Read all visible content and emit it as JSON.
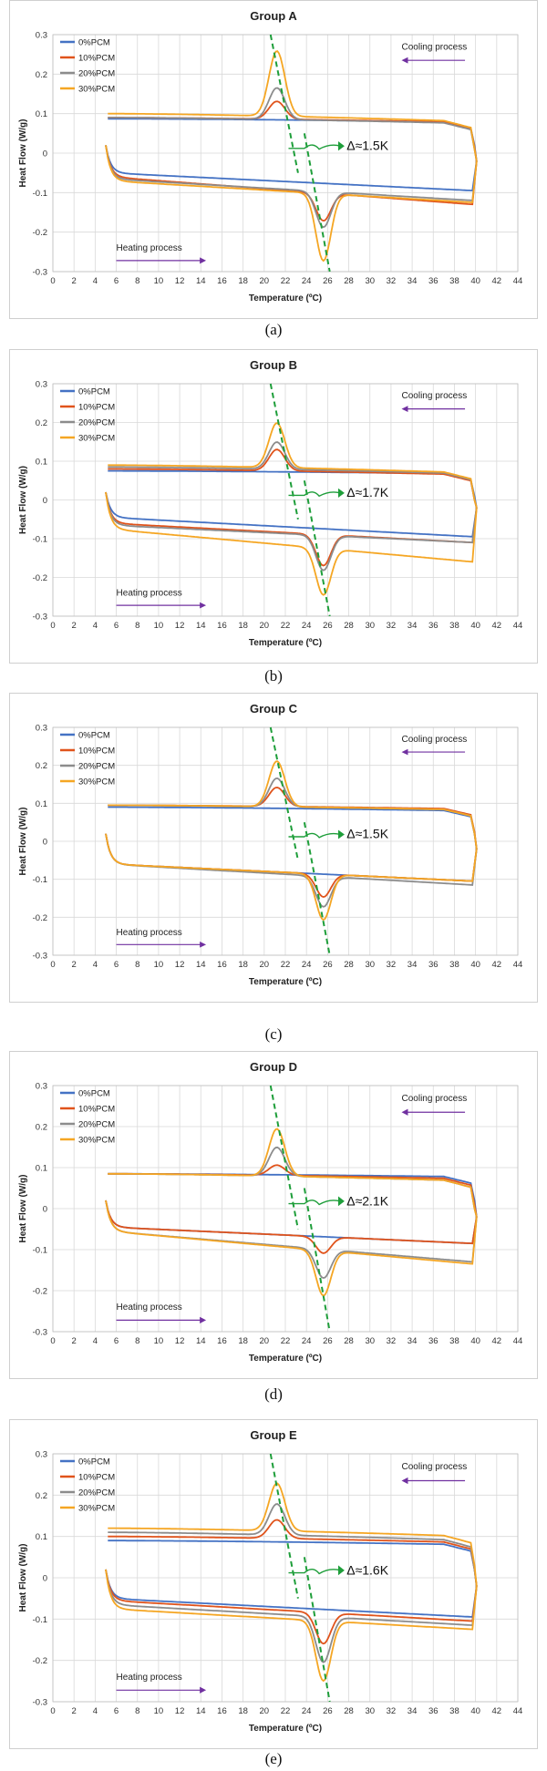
{
  "colors": {
    "pcm0": "#4472C4",
    "pcm10": "#E0531B",
    "pcm20": "#8C8C8C",
    "pcm30": "#F5A623",
    "dashed": "#1E9E3A",
    "arrow": "#7030A0",
    "grid": "#d9d9d9"
  },
  "legend_labels": [
    "0%PCM",
    "10%PCM",
    "20%PCM",
    "30%PCM"
  ],
  "xlabel": "Temperature (ºC)",
  "ylabel": "Heat Flow (W/g)",
  "cooling_label": "Cooling process",
  "heating_label": "Heating process",
  "chart_data": [
    {
      "type": "line",
      "title": "Group A",
      "caption": "(a)",
      "delta_label": "Δ≈1.5K",
      "xlim": [
        0,
        44
      ],
      "ylim": [
        -0.3,
        0.3
      ],
      "xticks": [
        0,
        2,
        4,
        6,
        8,
        10,
        12,
        14,
        16,
        18,
        20,
        22,
        24,
        26,
        28,
        30,
        32,
        34,
        36,
        38,
        40,
        42,
        44
      ],
      "yticks": [
        -0.3,
        -0.2,
        -0.1,
        0,
        0.1,
        0.2,
        0.3
      ],
      "series": [
        {
          "name": "0%PCM",
          "cooling": {
            "base": 0.087,
            "end": 0.07,
            "peak": 0.0
          },
          "heating": {
            "base": -0.05,
            "end": -0.095,
            "peak": 0.0
          }
        },
        {
          "name": "10%PCM",
          "cooling": {
            "base": 0.09,
            "end": 0.065,
            "peak": 0.045
          },
          "heating": {
            "base": -0.06,
            "end": -0.13,
            "peak": -0.07
          }
        },
        {
          "name": "20%PCM",
          "cooling": {
            "base": 0.09,
            "end": 0.06,
            "peak": 0.08
          },
          "heating": {
            "base": -0.065,
            "end": -0.12,
            "peak": -0.09
          }
        },
        {
          "name": "30%PCM",
          "cooling": {
            "base": 0.1,
            "end": 0.06,
            "peak": 0.165
          },
          "heating": {
            "base": -0.07,
            "end": -0.125,
            "peak": -0.17
          }
        }
      ]
    },
    {
      "type": "line",
      "title": "Group B",
      "caption": "(b)",
      "delta_label": "Δ≈1.7K",
      "xlim": [
        0,
        44
      ],
      "ylim": [
        -0.3,
        0.3
      ],
      "xticks": [
        0,
        2,
        4,
        6,
        8,
        10,
        12,
        14,
        16,
        18,
        20,
        22,
        24,
        26,
        28,
        30,
        32,
        34,
        36,
        38,
        40,
        42,
        44
      ],
      "yticks": [
        -0.3,
        -0.2,
        -0.1,
        0,
        0.1,
        0.2,
        0.3
      ],
      "series": [
        {
          "name": "0%PCM",
          "cooling": {
            "base": 0.075,
            "end": 0.06,
            "peak": 0.0
          },
          "heating": {
            "base": -0.045,
            "end": -0.095,
            "peak": 0.0
          }
        },
        {
          "name": "10%PCM",
          "cooling": {
            "base": 0.08,
            "end": 0.05,
            "peak": 0.055
          },
          "heating": {
            "base": -0.06,
            "end": -0.11,
            "peak": -0.08
          }
        },
        {
          "name": "20%PCM",
          "cooling": {
            "base": 0.085,
            "end": 0.05,
            "peak": 0.07
          },
          "heating": {
            "base": -0.065,
            "end": -0.11,
            "peak": -0.09
          }
        },
        {
          "name": "30%PCM",
          "cooling": {
            "base": 0.09,
            "end": 0.05,
            "peak": 0.115
          },
          "heating": {
            "base": -0.075,
            "end": -0.16,
            "peak": -0.12
          }
        }
      ]
    },
    {
      "type": "line",
      "title": "Group C",
      "caption": "(c)",
      "delta_label": "Δ≈1.5K",
      "xlim": [
        0,
        44
      ],
      "ylim": [
        -0.3,
        0.3
      ],
      "xticks": [
        0,
        2,
        4,
        6,
        8,
        10,
        12,
        14,
        16,
        18,
        20,
        22,
        24,
        26,
        28,
        30,
        32,
        34,
        36,
        38,
        40,
        42,
        44
      ],
      "yticks": [
        -0.3,
        -0.2,
        -0.1,
        0,
        0.1,
        0.2,
        0.3
      ],
      "series": [
        {
          "name": "0%PCM",
          "cooling": {
            "base": 0.09,
            "end": 0.07,
            "peak": 0.0
          },
          "heating": {
            "base": -0.06,
            "end": -0.105,
            "peak": 0.0
          }
        },
        {
          "name": "10%PCM",
          "cooling": {
            "base": 0.095,
            "end": 0.075,
            "peak": 0.05
          },
          "heating": {
            "base": -0.06,
            "end": -0.105,
            "peak": -0.06
          }
        },
        {
          "name": "20%PCM",
          "cooling": {
            "base": 0.095,
            "end": 0.07,
            "peak": 0.075
          },
          "heating": {
            "base": -0.06,
            "end": -0.115,
            "peak": -0.08
          }
        },
        {
          "name": "30%PCM",
          "cooling": {
            "base": 0.095,
            "end": 0.07,
            "peak": 0.12
          },
          "heating": {
            "base": -0.06,
            "end": -0.105,
            "peak": -0.12
          }
        }
      ]
    },
    {
      "type": "line",
      "title": "Group D",
      "caption": "(d)",
      "delta_label": "Δ≈2.1K",
      "xlim": [
        0,
        44
      ],
      "ylim": [
        -0.3,
        0.3
      ],
      "xticks": [
        0,
        2,
        4,
        6,
        8,
        10,
        12,
        14,
        16,
        18,
        20,
        22,
        24,
        26,
        28,
        30,
        32,
        34,
        36,
        38,
        40,
        42,
        44
      ],
      "yticks": [
        -0.3,
        -0.2,
        -0.1,
        0,
        0.1,
        0.2,
        0.3
      ],
      "series": [
        {
          "name": "0%PCM",
          "cooling": {
            "base": 0.085,
            "end": 0.07,
            "peak": 0.0
          },
          "heating": {
            "base": -0.045,
            "end": -0.085,
            "peak": 0.0
          }
        },
        {
          "name": "10%PCM",
          "cooling": {
            "base": 0.085,
            "end": 0.06,
            "peak": 0.025
          },
          "heating": {
            "base": -0.045,
            "end": -0.085,
            "peak": -0.04
          }
        },
        {
          "name": "20%PCM",
          "cooling": {
            "base": 0.085,
            "end": 0.05,
            "peak": 0.07
          },
          "heating": {
            "base": -0.055,
            "end": -0.13,
            "peak": -0.07
          }
        },
        {
          "name": "30%PCM",
          "cooling": {
            "base": 0.085,
            "end": 0.05,
            "peak": 0.115
          },
          "heating": {
            "base": -0.055,
            "end": -0.135,
            "peak": -0.11
          }
        }
      ]
    },
    {
      "type": "line",
      "title": "Group E",
      "caption": "(e)",
      "delta_label": "Δ≈1.6K",
      "xlim": [
        0,
        44
      ],
      "ylim": [
        -0.3,
        0.3
      ],
      "xticks": [
        0,
        2,
        4,
        6,
        8,
        10,
        12,
        14,
        16,
        18,
        20,
        22,
        24,
        26,
        28,
        30,
        32,
        34,
        36,
        38,
        40,
        42,
        44
      ],
      "yticks": [
        -0.3,
        -0.2,
        -0.1,
        0,
        0.1,
        0.2,
        0.3
      ],
      "series": [
        {
          "name": "0%PCM",
          "cooling": {
            "base": 0.09,
            "end": 0.07,
            "peak": 0.0
          },
          "heating": {
            "base": -0.05,
            "end": -0.095,
            "peak": 0.0
          }
        },
        {
          "name": "10%PCM",
          "cooling": {
            "base": 0.1,
            "end": 0.07,
            "peak": 0.045
          },
          "heating": {
            "base": -0.055,
            "end": -0.105,
            "peak": -0.075
          }
        },
        {
          "name": "20%PCM",
          "cooling": {
            "base": 0.11,
            "end": 0.07,
            "peak": 0.075
          },
          "heating": {
            "base": -0.065,
            "end": -0.115,
            "peak": -0.11
          }
        },
        {
          "name": "30%PCM",
          "cooling": {
            "base": 0.12,
            "end": 0.08,
            "peak": 0.115
          },
          "heating": {
            "base": -0.075,
            "end": -0.125,
            "peak": -0.145
          }
        }
      ]
    }
  ]
}
